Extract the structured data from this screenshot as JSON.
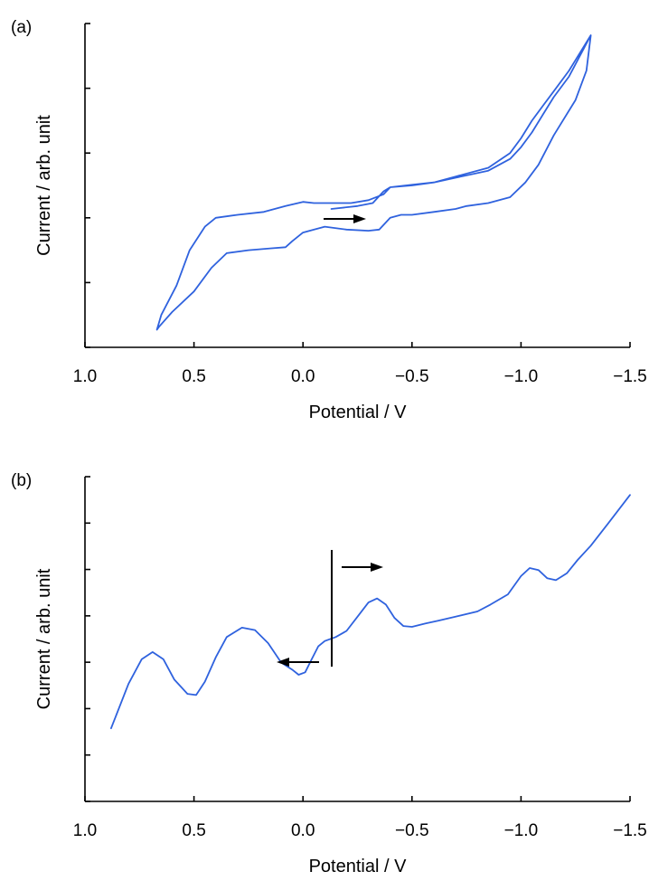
{
  "colors": {
    "curve": "#2f62de",
    "axis": "#000000"
  },
  "chart_data": [
    {
      "panel_label": "(a)",
      "type": "line",
      "xlabel": "Potential / V",
      "ylabel": "Current / arb. unit",
      "x_ticks": [
        1.0,
        0.5,
        0.0,
        -0.5,
        -1.0,
        -1.5
      ],
      "x_tick_labels": [
        "1.0",
        "0.5",
        "0.0",
        "−0.5",
        "−1.0",
        "−1.5"
      ],
      "xlim": [
        1.0,
        -1.5
      ],
      "x_axis_reversed": true,
      "ylim": [
        0,
        5.5
      ],
      "y_tick_labels_shown": false,
      "grid": false,
      "series": [
        {
          "closed": true,
          "x": [
            -0.13,
            -0.25,
            -0.32,
            -0.37,
            -0.4,
            -0.5,
            -0.6,
            -0.7,
            -0.85,
            -0.95,
            -1.0,
            -1.05,
            -1.1,
            -1.15,
            -1.22,
            -1.32,
            -1.3,
            -1.25,
            -1.15,
            -1.08,
            -1.02,
            -0.95,
            -0.85,
            -0.75,
            -0.7,
            -0.6,
            -0.5,
            -0.45,
            -0.4,
            -0.35,
            -0.3,
            -0.2,
            -0.1,
            0.0,
            0.05,
            0.08,
            0.15,
            0.25,
            0.35,
            0.42,
            0.5,
            0.6,
            0.66,
            0.67,
            0.65,
            0.58,
            0.52,
            0.45,
            0.4,
            0.3,
            0.18,
            0.08,
            0.0,
            -0.05,
            -0.15,
            -0.22,
            -0.3,
            -0.37,
            -0.4,
            -0.5,
            -0.6,
            -0.7,
            -0.85,
            -0.95,
            -1.0,
            -1.05,
            -1.1,
            -1.15,
            -1.22,
            -1.32
          ],
          "y": [
            2.35,
            2.4,
            2.45,
            2.65,
            2.72,
            2.76,
            2.8,
            2.88,
            3.0,
            3.2,
            3.4,
            3.65,
            3.95,
            4.25,
            4.6,
            5.3,
            4.7,
            4.2,
            3.6,
            3.1,
            2.8,
            2.55,
            2.45,
            2.4,
            2.35,
            2.3,
            2.25,
            2.25,
            2.2,
            2.0,
            1.98,
            2.0,
            2.05,
            1.95,
            1.8,
            1.7,
            1.68,
            1.65,
            1.6,
            1.35,
            0.95,
            0.6,
            0.35,
            0.3,
            0.55,
            1.05,
            1.65,
            2.05,
            2.2,
            2.25,
            2.3,
            2.4,
            2.47,
            2.45,
            2.45,
            2.45,
            2.5,
            2.6,
            2.72,
            2.75,
            2.8,
            2.9,
            3.05,
            3.3,
            3.55,
            3.85,
            4.1,
            4.35,
            4.7,
            5.3
          ]
        }
      ],
      "annotations": [
        {
          "type": "arrow",
          "direction": "right"
        }
      ]
    },
    {
      "panel_label": "(b)",
      "type": "line",
      "xlabel": "Potential / V",
      "ylabel": "Current / arb. unit",
      "x_ticks": [
        1.0,
        0.5,
        0.0,
        -0.5,
        -1.0,
        -1.5
      ],
      "x_tick_labels": [
        "1.0",
        "0.5",
        "0.0",
        "−0.5",
        "−1.0",
        "−1.5"
      ],
      "xlim": [
        1.0,
        -1.5
      ],
      "x_axis_reversed": true,
      "ylim": [
        0,
        8
      ],
      "y_tick_labels_shown": false,
      "grid": false,
      "series": [
        {
          "x": [
            0.88,
            0.8,
            0.74,
            0.69,
            0.64,
            0.59,
            0.53,
            0.49,
            0.45,
            0.4,
            0.35,
            0.28,
            0.22,
            0.16,
            0.1,
            0.05,
            0.02,
            -0.01,
            -0.04,
            -0.07,
            -0.1,
            -0.15,
            -0.2,
            -0.25,
            -0.3,
            -0.34,
            -0.38,
            -0.42,
            -0.46,
            -0.5,
            -0.56,
            -0.62,
            -0.7,
            -0.8,
            -0.86,
            -0.94,
            -1.0,
            -1.04,
            -1.08,
            -1.12,
            -1.16,
            -1.21,
            -1.26,
            -1.32,
            -1.4,
            -1.5
          ],
          "y": [
            1.8,
            2.9,
            3.5,
            3.68,
            3.5,
            3.0,
            2.65,
            2.62,
            2.95,
            3.55,
            4.05,
            4.28,
            4.22,
            3.9,
            3.42,
            3.25,
            3.12,
            3.18,
            3.5,
            3.82,
            3.95,
            4.05,
            4.2,
            4.55,
            4.9,
            5.0,
            4.85,
            4.52,
            4.32,
            4.3,
            4.38,
            4.45,
            4.55,
            4.68,
            4.85,
            5.1,
            5.55,
            5.75,
            5.7,
            5.5,
            5.45,
            5.62,
            5.95,
            6.3,
            6.85,
            7.55
          ]
        }
      ],
      "annotations": [
        {
          "type": "arrow",
          "direction": "right"
        },
        {
          "type": "arrow",
          "direction": "left"
        },
        {
          "type": "vertical-line"
        }
      ]
    }
  ]
}
